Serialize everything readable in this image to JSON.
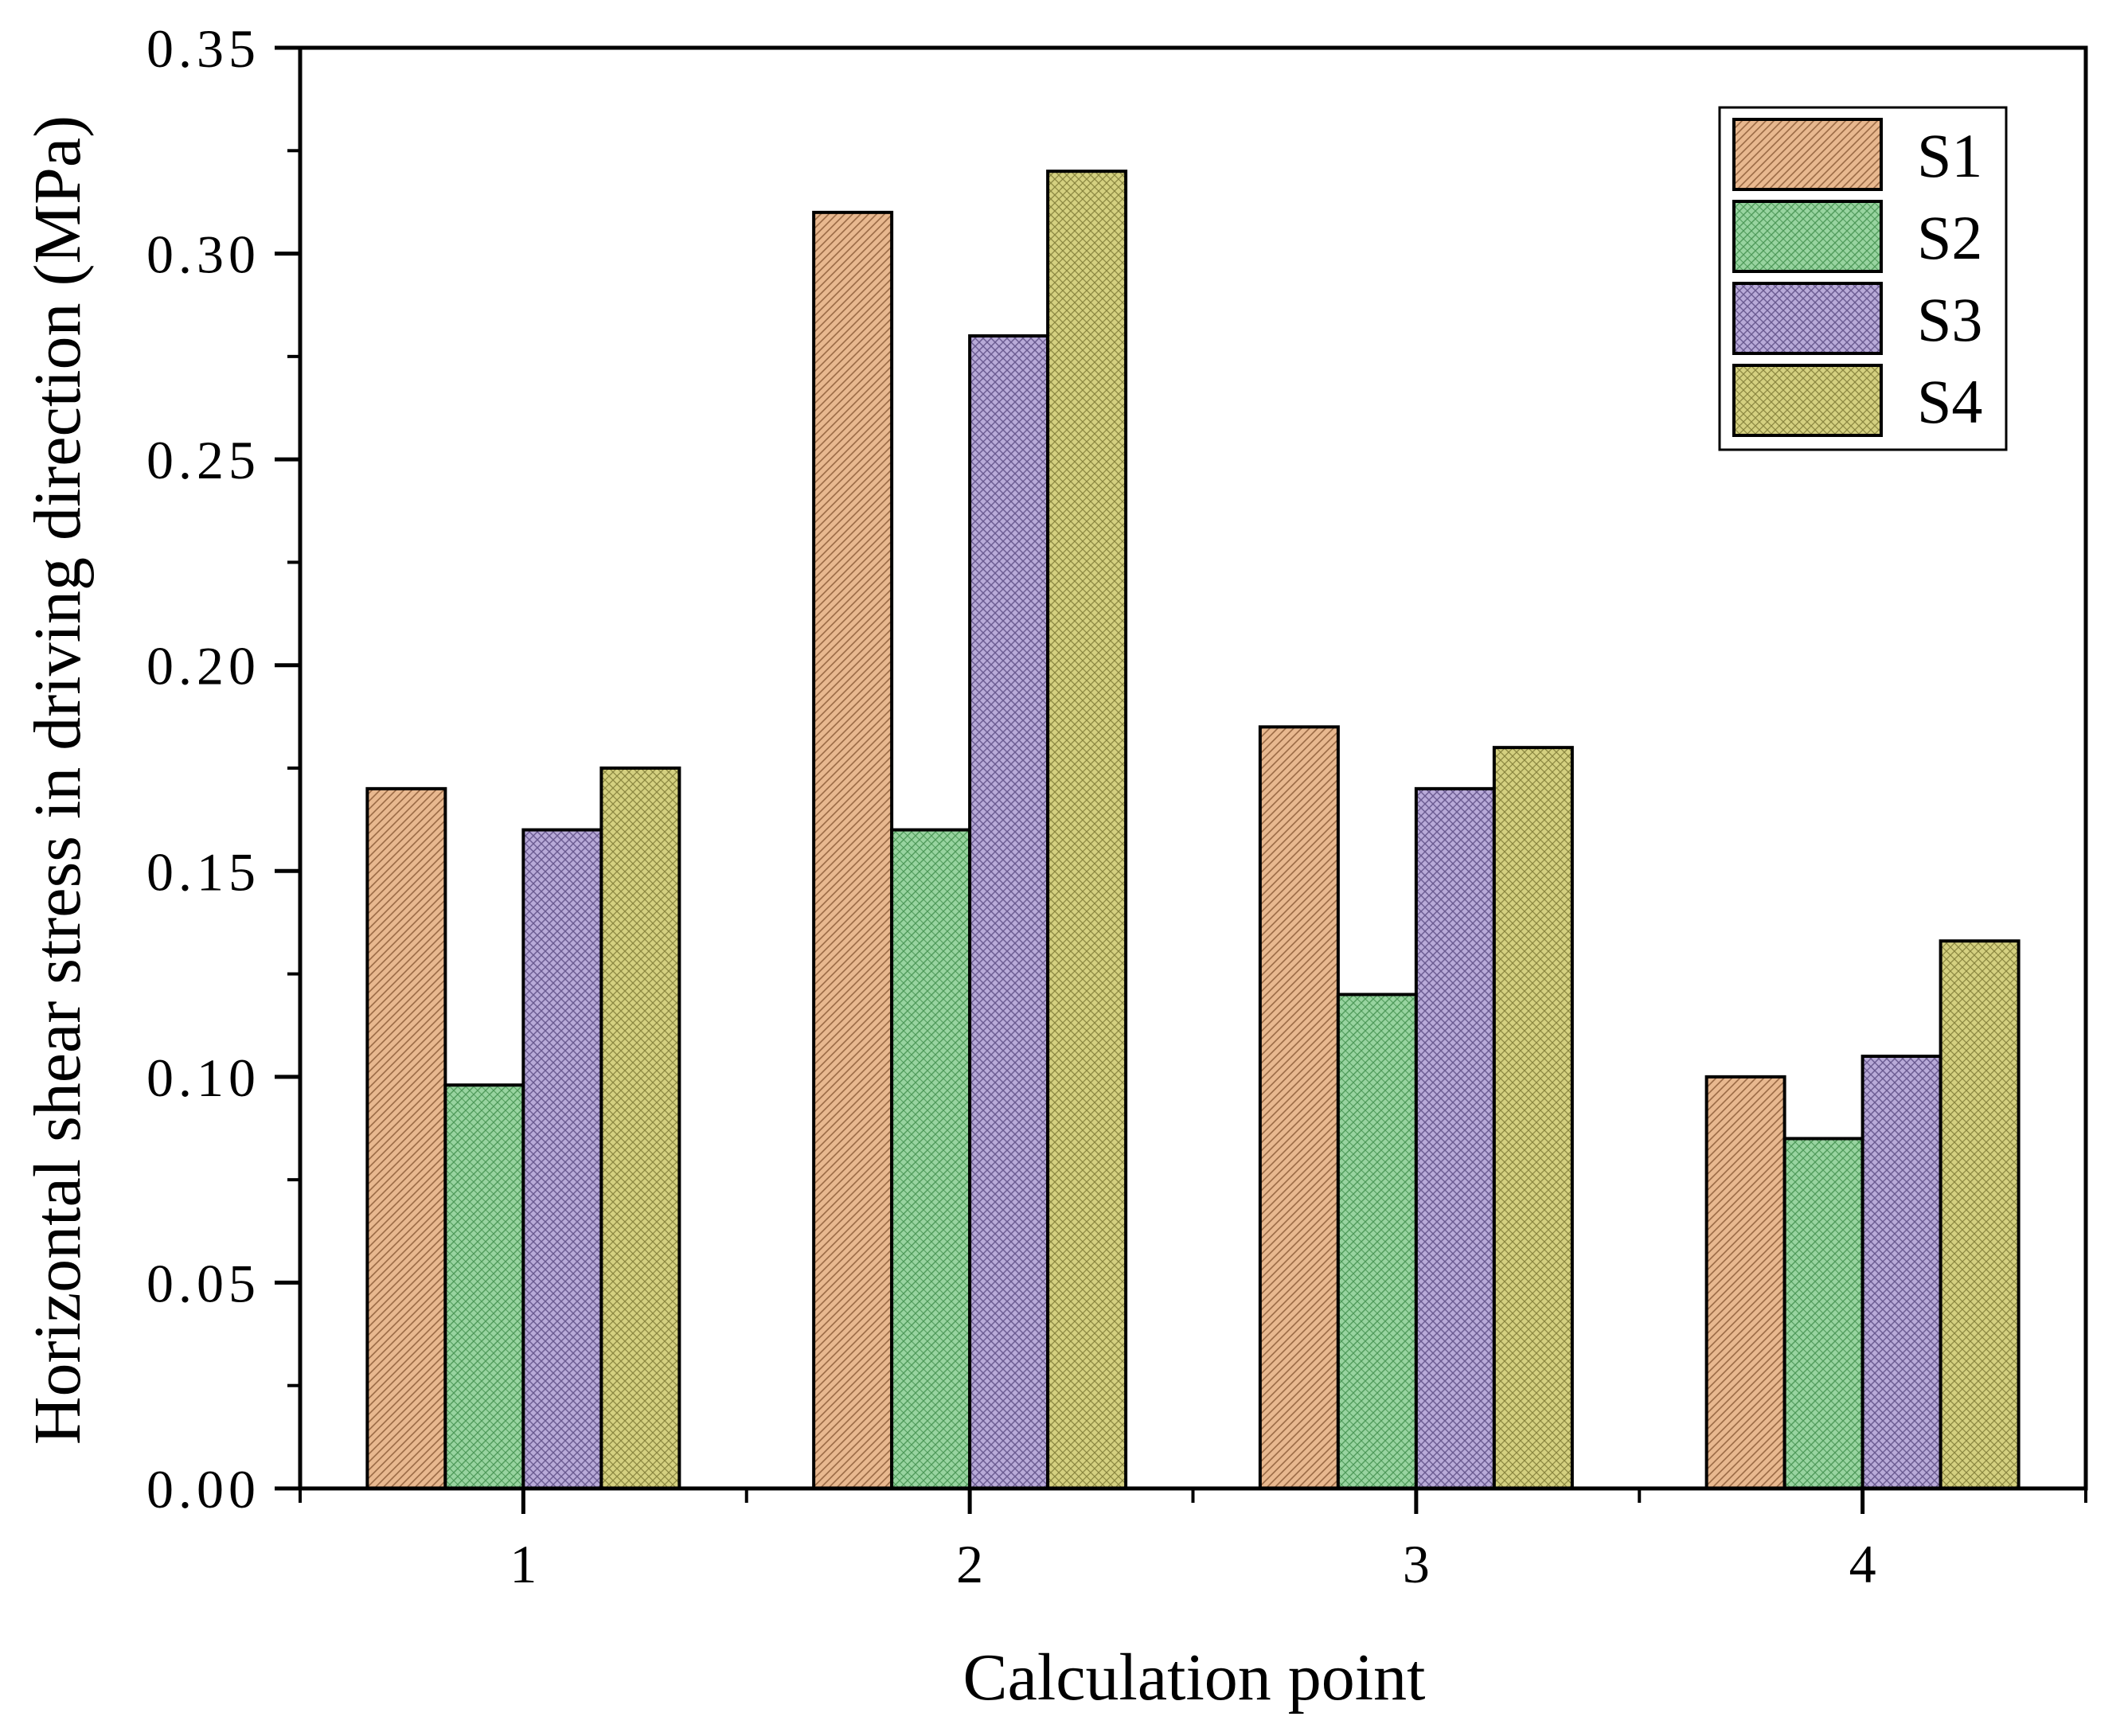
{
  "chart_data": {
    "type": "bar",
    "title": "",
    "xlabel": "Calculation point",
    "ylabel": "Horizontal shear stress in driving direction (MPa)",
    "categories": [
      "1",
      "2",
      "3",
      "4"
    ],
    "ylim": [
      0,
      0.35
    ],
    "yticks": [
      "0.00",
      "0.05",
      "0.10",
      "0.15",
      "0.20",
      "0.25",
      "0.30",
      "0.35"
    ],
    "legend_position": "top-right",
    "grid": false,
    "series": [
      {
        "name": "S1",
        "color": "#e8b88f",
        "values": [
          0.17,
          0.31,
          0.185,
          0.1
        ]
      },
      {
        "name": "S2",
        "color": "#98d4a0",
        "values": [
          0.098,
          0.16,
          0.12,
          0.085
        ]
      },
      {
        "name": "S3",
        "color": "#b8aad8",
        "values": [
          0.16,
          0.28,
          0.17,
          0.105
        ]
      },
      {
        "name": "S4",
        "color": "#d4d080",
        "values": [
          0.175,
          0.32,
          0.18,
          0.133
        ]
      }
    ]
  }
}
